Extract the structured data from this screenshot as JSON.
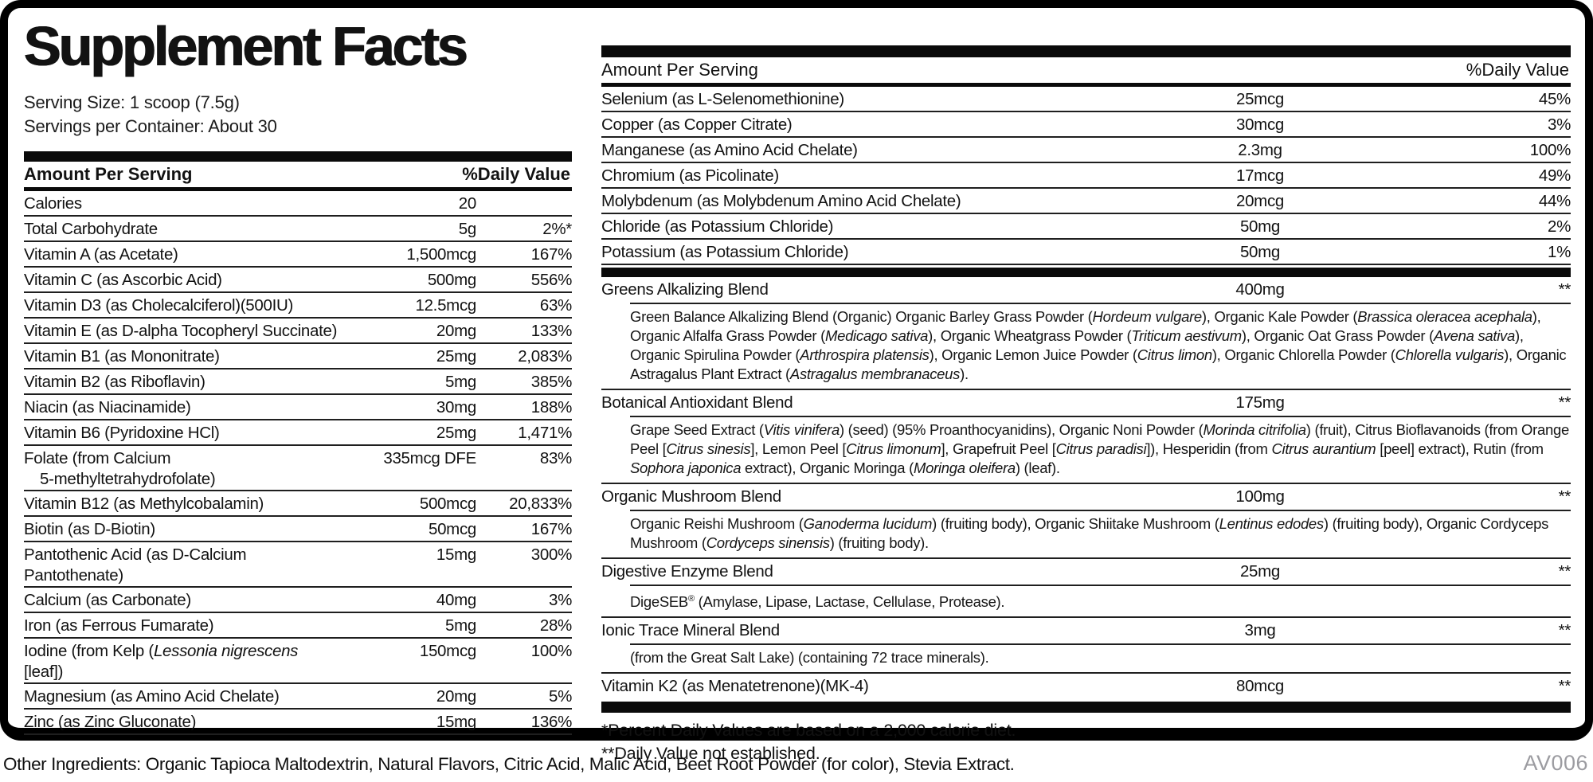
{
  "panel": {
    "title": "Supplement Facts",
    "serving_size": "Serving Size: 1 scoop (7.5g)",
    "servings_per_container": "Servings per Container: About 30",
    "left_header": {
      "amount_label": "Amount Per Serving",
      "dv_label": "%Daily Value"
    },
    "right_header": {
      "amount_label": "Amount Per Serving",
      "dv_label": "%Daily Value"
    },
    "left_rows": [
      {
        "name": [
          {
            "t": "Calories"
          }
        ],
        "amount": "20",
        "dv": ""
      },
      {
        "name": [
          {
            "t": "Total Carbohydrate"
          }
        ],
        "amount": "5g",
        "dv": "2%*"
      },
      {
        "name": [
          {
            "t": "Vitamin A (as Acetate)"
          }
        ],
        "amount": "1,500mcg",
        "dv": "167%"
      },
      {
        "name": [
          {
            "t": "Vitamin C (as Ascorbic Acid)"
          }
        ],
        "amount": "500mg",
        "dv": "556%"
      },
      {
        "name": [
          {
            "t": "Vitamin D3 (as Cholecalciferol)(500IU)"
          }
        ],
        "amount": "12.5mcg",
        "dv": "63%"
      },
      {
        "name": [
          {
            "t": "Vitamin E (as D-alpha Tocopheryl Succinate)"
          }
        ],
        "amount": "20mg",
        "dv": "133%"
      },
      {
        "name": [
          {
            "t": "Vitamin B1 (as Mononitrate)"
          }
        ],
        "amount": "25mg",
        "dv": "2,083%"
      },
      {
        "name": [
          {
            "t": "Vitamin B2 (as Riboflavin)"
          }
        ],
        "amount": "5mg",
        "dv": "385%"
      },
      {
        "name": [
          {
            "t": "Niacin (as Niacinamide)"
          }
        ],
        "amount": "30mg",
        "dv": "188%"
      },
      {
        "name": [
          {
            "t": "Vitamin B6 (Pyridoxine HCl)"
          }
        ],
        "amount": "25mg",
        "dv": "1,471%"
      },
      {
        "name": [
          {
            "t": "Folate (from Calcium"
          },
          {
            "t": "5-methyltetrahydrofolate)",
            "br": true,
            "ind": true
          }
        ],
        "amount": "335mcg DFE",
        "dv": "83%"
      },
      {
        "name": [
          {
            "t": "Vitamin B12 (as Methylcobalamin)"
          }
        ],
        "amount": "500mcg",
        "dv": "20,833%"
      },
      {
        "name": [
          {
            "t": "Biotin (as D-Biotin)"
          }
        ],
        "amount": "50mcg",
        "dv": "167%"
      },
      {
        "name": [
          {
            "t": "Pantothenic Acid (as D-Calcium Pantothenate)"
          }
        ],
        "amount": "15mg",
        "dv": "300%"
      },
      {
        "name": [
          {
            "t": "Calcium (as Carbonate)"
          }
        ],
        "amount": "40mg",
        "dv": "3%"
      },
      {
        "name": [
          {
            "t": "Iron (as Ferrous Fumarate)"
          }
        ],
        "amount": "5mg",
        "dv": "28%"
      },
      {
        "name": [
          {
            "t": "Iodine (from Kelp ("
          },
          {
            "t": "Lessonia nigrescens",
            "i": true
          },
          {
            "t": " [leaf])"
          }
        ],
        "amount": "150mcg",
        "dv": "100%"
      },
      {
        "name": [
          {
            "t": "Magnesium (as Amino Acid Chelate)"
          }
        ],
        "amount": "20mg",
        "dv": "5%"
      },
      {
        "name": [
          {
            "t": "Zinc (as Zinc Gluconate)"
          }
        ],
        "amount": "15mg",
        "dv": "136%"
      }
    ],
    "right_rows": [
      {
        "name": [
          {
            "t": "Selenium (as L-Selenomethionine)"
          }
        ],
        "amount": "25mcg",
        "dv": "45%"
      },
      {
        "name": [
          {
            "t": "Copper (as Copper Citrate)"
          }
        ],
        "amount": "30mcg",
        "dv": "3%"
      },
      {
        "name": [
          {
            "t": "Manganese (as Amino Acid Chelate)"
          }
        ],
        "amount": "2.3mg",
        "dv": "100%"
      },
      {
        "name": [
          {
            "t": "Chromium (as Picolinate)"
          }
        ],
        "amount": "17mcg",
        "dv": "49%"
      },
      {
        "name": [
          {
            "t": "Molybdenum (as Molybdenum Amino Acid Chelate)"
          }
        ],
        "amount": "20mcg",
        "dv": "44%"
      },
      {
        "name": [
          {
            "t": "Chloride (as Potassium Chloride)"
          }
        ],
        "amount": "50mg",
        "dv": "2%"
      },
      {
        "name": [
          {
            "t": "Potassium (as Potassium Chloride)"
          }
        ],
        "amount": "50mg",
        "dv": "1%"
      }
    ],
    "blend_rows": [
      {
        "name": [
          {
            "t": "Greens Alkalizing Blend"
          }
        ],
        "amount": "400mg",
        "dv": "**",
        "desc": [
          {
            "t": "Green Balance Alkalizing Blend (Organic) Organic Barley Grass Powder ("
          },
          {
            "t": "Hordeum vulgare",
            "i": true
          },
          {
            "t": "), Organic Kale Powder ("
          },
          {
            "t": "Brassica oleracea acephala",
            "i": true
          },
          {
            "t": "), Organic Alfalfa Grass Powder ("
          },
          {
            "t": "Medicago sativa",
            "i": true
          },
          {
            "t": "), Organic Wheatgrass Powder ("
          },
          {
            "t": "Triticum aestivum",
            "i": true
          },
          {
            "t": "), Organic Oat Grass Powder ("
          },
          {
            "t": "Avena sativa",
            "i": true
          },
          {
            "t": "), Organic Spirulina Powder ("
          },
          {
            "t": "Arthrospira platensis",
            "i": true
          },
          {
            "t": "), Organic Lemon Juice Powder ("
          },
          {
            "t": "Citrus limon",
            "i": true
          },
          {
            "t": "), Organic Chlorella Powder ("
          },
          {
            "t": "Chlorella vulgaris",
            "i": true
          },
          {
            "t": "), Organic Astragalus Plant Extract ("
          },
          {
            "t": "Astragalus membranaceus",
            "i": true
          },
          {
            "t": ")."
          }
        ]
      },
      {
        "name": [
          {
            "t": "Botanical Antioxidant Blend"
          }
        ],
        "amount": "175mg",
        "dv": "**",
        "desc": [
          {
            "t": "Grape Seed Extract ("
          },
          {
            "t": "Vitis vinifera",
            "i": true
          },
          {
            "t": ") (seed) (95% Proanthocyanidins), Organic Noni Powder ("
          },
          {
            "t": "Morinda citrifolia",
            "i": true
          },
          {
            "t": ") (fruit), Citrus Bioflavanoids (from Orange Peel ["
          },
          {
            "t": "Citrus sinesis",
            "i": true
          },
          {
            "t": "], Lemon Peel ["
          },
          {
            "t": "Citrus limonum",
            "i": true
          },
          {
            "t": "], Grapefruit Peel ["
          },
          {
            "t": "Citrus paradisi",
            "i": true
          },
          {
            "t": "]), Hesperidin (from "
          },
          {
            "t": "Citrus aurantium",
            "i": true
          },
          {
            "t": " [peel] extract), Rutin (from "
          },
          {
            "t": "Sophora japonica",
            "i": true
          },
          {
            "t": " extract), Organic Moringa ("
          },
          {
            "t": "Moringa oleifera",
            "i": true
          },
          {
            "t": ") (leaf)."
          }
        ]
      },
      {
        "name": [
          {
            "t": "Organic Mushroom Blend"
          }
        ],
        "amount": "100mg",
        "dv": "**",
        "desc": [
          {
            "t": "Organic Reishi Mushroom ("
          },
          {
            "t": "Ganoderma lucidum",
            "i": true
          },
          {
            "t": ") (fruiting body), Organic Shiitake Mushroom ("
          },
          {
            "t": "Lentinus edodes",
            "i": true
          },
          {
            "t": ") (fruiting body), Organic Cordyceps Mushroom ("
          },
          {
            "t": "Cordyceps sinensis",
            "i": true
          },
          {
            "t": ") (fruiting body)."
          }
        ]
      },
      {
        "name": [
          {
            "t": "Digestive Enzyme Blend"
          }
        ],
        "amount": "25mg",
        "dv": "**",
        "desc": [
          {
            "t": "DigeSEB"
          },
          {
            "t": "®",
            "sup": true
          },
          {
            "t": " (Amylase, Lipase, Lactase, Cellulase, Protease)."
          }
        ]
      },
      {
        "name": [
          {
            "t": "Ionic Trace Mineral Blend"
          }
        ],
        "amount": "3mg",
        "dv": "**",
        "desc": [
          {
            "t": "(from the Great Salt Lake) (containing 72 trace minerals)."
          }
        ]
      },
      {
        "name": [
          {
            "t": "Vitamin K2 (as Menatetrenone)(MK-4)"
          }
        ],
        "amount": "80mcg",
        "dv": "**"
      }
    ],
    "footnotes": [
      "*Percent Daily Values are based on a 2,000 calorie diet.",
      "**Daily Value not established."
    ]
  },
  "footer": {
    "other_ingredients": "Other Ingredients: Organic Tapioca Maltodextrin, Natural Flavors, Citric Acid, Malic Acid, Beet Root Powder (for color), Stevia Extract.",
    "code": "AV006"
  },
  "colors": {
    "text": "#121212",
    "rule": "#1f1f1f",
    "bar": "#0a0a0a",
    "code_gray": "#9c9ca1"
  }
}
